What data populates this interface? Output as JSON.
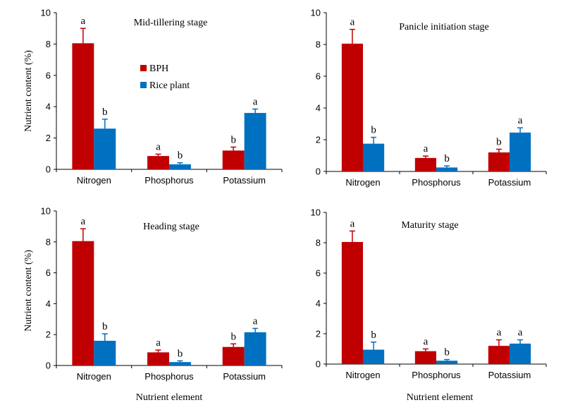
{
  "colors": {
    "bph": "#c00000",
    "rice": "#0070c0"
  },
  "y_axis_label": "Nutrient content (%)",
  "x_axis_label": "Nutrient element",
  "legend": [
    {
      "name": "BPH",
      "color": "#c00000"
    },
    {
      "name": "Rice plant",
      "color": "#0070c0"
    }
  ],
  "chart_data": [
    {
      "type": "bar",
      "title": "Mid-tillering stage",
      "categories": [
        "Nitrogen",
        "Phosphorus",
        "Potassium"
      ],
      "ylim": [
        0,
        10
      ],
      "yticks": [
        0,
        2,
        4,
        6,
        8,
        10
      ],
      "series": [
        {
          "name": "BPH",
          "values": [
            8.05,
            0.85,
            1.2
          ],
          "errors": [
            0.95,
            0.12,
            0.22
          ],
          "labels": [
            "a",
            "a",
            "b"
          ]
        },
        {
          "name": "Rice plant",
          "values": [
            2.6,
            0.32,
            3.6
          ],
          "errors": [
            0.6,
            0.1,
            0.25
          ],
          "labels": [
            "b",
            "b",
            "a"
          ]
        }
      ]
    },
    {
      "type": "bar",
      "title": "Panicle initiation stage",
      "categories": [
        "Nitrogen",
        "Phosphorus",
        "Potassium"
      ],
      "ylim": [
        0,
        10
      ],
      "yticks": [
        0,
        2,
        4,
        6,
        8,
        10
      ],
      "series": [
        {
          "name": "BPH",
          "values": [
            8.05,
            0.85,
            1.2
          ],
          "errors": [
            0.9,
            0.12,
            0.2
          ],
          "labels": [
            "a",
            "a",
            "b"
          ]
        },
        {
          "name": "Rice plant",
          "values": [
            1.75,
            0.25,
            2.45
          ],
          "errors": [
            0.4,
            0.1,
            0.3
          ],
          "labels": [
            "b",
            "b",
            "a"
          ]
        }
      ]
    },
    {
      "type": "bar",
      "title": "Heading stage",
      "categories": [
        "Nitrogen",
        "Phosphorus",
        "Potassium"
      ],
      "ylim": [
        0,
        10
      ],
      "yticks": [
        0,
        2,
        4,
        6,
        8,
        10
      ],
      "series": [
        {
          "name": "BPH",
          "values": [
            8.05,
            0.85,
            1.2
          ],
          "errors": [
            0.8,
            0.15,
            0.2
          ],
          "labels": [
            "a",
            "a",
            "b"
          ]
        },
        {
          "name": "Rice plant",
          "values": [
            1.6,
            0.22,
            2.15
          ],
          "errors": [
            0.45,
            0.08,
            0.25
          ],
          "labels": [
            "b",
            "b",
            "a"
          ]
        }
      ]
    },
    {
      "type": "bar",
      "title": "Maturity stage",
      "categories": [
        "Nitrogen",
        "Phosphorus",
        "Potassium"
      ],
      "ylim": [
        0,
        10
      ],
      "yticks": [
        0,
        2,
        4,
        6,
        8,
        10
      ],
      "series": [
        {
          "name": "BPH",
          "values": [
            8.05,
            0.85,
            1.2
          ],
          "errors": [
            0.72,
            0.15,
            0.4
          ],
          "labels": [
            "a",
            "a",
            "a"
          ]
        },
        {
          "name": "Rice plant",
          "values": [
            0.95,
            0.22,
            1.35
          ],
          "errors": [
            0.5,
            0.08,
            0.25
          ],
          "labels": [
            "b",
            "b",
            "a"
          ]
        }
      ]
    }
  ]
}
